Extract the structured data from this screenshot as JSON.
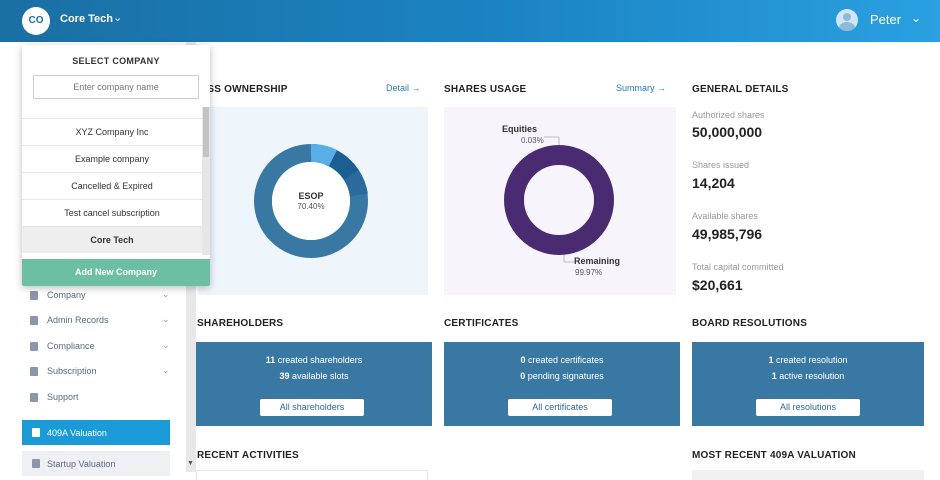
{
  "header": {
    "company_initials": "CO",
    "company_name": "Core Tech",
    "user_name": "Peter"
  },
  "dropdown": {
    "title": "SELECT COMPANY",
    "search_placeholder": "Enter company name",
    "companies": [
      {
        "label": "XYZ Company Inc",
        "active": false
      },
      {
        "label": "Example company",
        "active": false
      },
      {
        "label": "Cancelled & Expired",
        "active": false
      },
      {
        "label": "Test cancel subscription",
        "active": false
      },
      {
        "label": "Core Tech",
        "active": true
      }
    ],
    "add_label": "Add New Company"
  },
  "sidebar": {
    "items": [
      {
        "label": "Company",
        "icon": "building-icon"
      },
      {
        "label": "Admin Records",
        "icon": "document-icon"
      },
      {
        "label": "Compliance",
        "icon": "shield-icon"
      },
      {
        "label": "Subscription",
        "icon": "subscription-icon"
      },
      {
        "label": "Support",
        "icon": "support-icon"
      }
    ],
    "valuation_409a": "409A Valuation",
    "startup_valuation": "Startup Valuation"
  },
  "class_ownership": {
    "title": "ASS OWNERSHIP",
    "link": "Detail",
    "center_label": "ESOP",
    "center_value": "70.40%"
  },
  "shares_usage": {
    "title": "SHARES USAGE",
    "link": "Summary",
    "equities_label": "Equities",
    "equities_value": "0.03%",
    "remaining_label": "Remaining",
    "remaining_value": "99.97%"
  },
  "general_details": {
    "title": "GENERAL DETAILS",
    "authorized_label": "Authorized shares",
    "authorized_value": "50,000,000",
    "issued_label": "Shares issued",
    "issued_value": "14,204",
    "available_label": "Available shares",
    "available_value": "49,985,796",
    "capital_label": "Total capital committed",
    "capital_value": "$20,661"
  },
  "shareholders": {
    "title": "SHAREHOLDERS",
    "line1_num": "11",
    "line1_text": " created shareholders",
    "line2_num": "39",
    "line2_text": " available slots",
    "button": "All shareholders"
  },
  "certificates": {
    "title": "CERTIFICATES",
    "line1_num": "0",
    "line1_text": " created certificates",
    "line2_num": "0",
    "line2_text": " pending signatures",
    "button": "All certificates"
  },
  "board_resolutions": {
    "title": "BOARD RESOLUTIONS",
    "line1_num": "1",
    "line1_text": " created resolution",
    "line2_num": "1",
    "line2_text": " active resolution",
    "button": "All resolutions"
  },
  "recent_activities": {
    "title": "RECENT ACTIVITIES"
  },
  "recent_409a": {
    "title": "MOST RECENT 409A VALUATION"
  },
  "colors": {
    "header_start": "#1a6fa3",
    "header_end": "#2aa0e0",
    "card_bg": "#3a78a4",
    "add_button": "#6dbfa4",
    "valuation_active": "#1a9bd7",
    "esop_ring": "#3a78a4",
    "shares_ring": "#4a2a70"
  }
}
